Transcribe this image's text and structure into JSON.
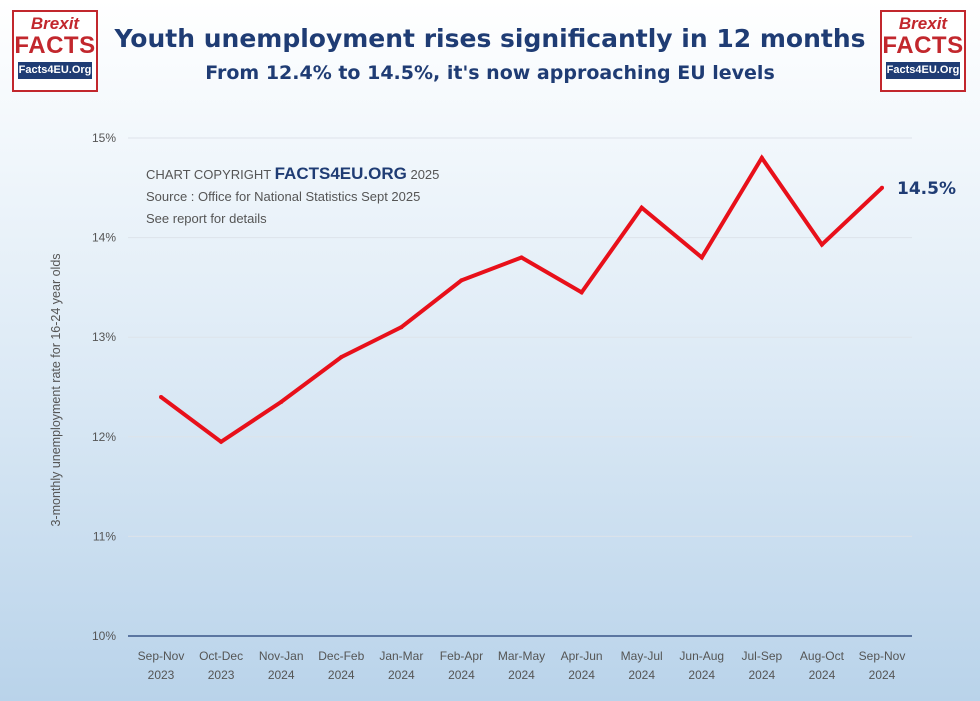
{
  "logos": {
    "line1": "Brexit",
    "line2": "FACTS",
    "line3": "Facts4EU.Org"
  },
  "colors": {
    "line": "#e8101a",
    "title": "#1f3c74",
    "logo_red": "#c2272d"
  },
  "copyright": {
    "prefix": "CHART COPYRIGHT",
    "brand": "FACTS4EU.ORG",
    "year": "2025",
    "source": "Source : Office for National Statistics Sept 2025",
    "note": "See report for details"
  },
  "chart_data": {
    "type": "line",
    "title": "Youth unemployment rises significantly in 12 months",
    "subtitle": "From 12.4% to 14.5%, it's now approaching EU levels",
    "ylabel": "3-monthly unemployment rate for 16-24 year olds",
    "xlabel": "",
    "categories": [
      [
        "Sep-Nov",
        "2023"
      ],
      [
        "Oct-Dec",
        "2023"
      ],
      [
        "Nov-Jan",
        "2024"
      ],
      [
        "Dec-Feb",
        "2024"
      ],
      [
        "Jan-Mar",
        "2024"
      ],
      [
        "Feb-Apr",
        "2024"
      ],
      [
        "Mar-May",
        "2024"
      ],
      [
        "Apr-Jun",
        "2024"
      ],
      [
        "May-Jul",
        "2024"
      ],
      [
        "Jun-Aug",
        "2024"
      ],
      [
        "Jul-Sep",
        "2024"
      ],
      [
        "Aug-Oct",
        "2024"
      ],
      [
        "Sep-Nov",
        "2024"
      ]
    ],
    "values": [
      12.4,
      11.95,
      12.35,
      12.8,
      13.1,
      13.57,
      13.8,
      13.45,
      14.3,
      13.8,
      14.8,
      13.93,
      14.5
    ],
    "ylim": [
      10,
      15
    ],
    "yticks": [
      10,
      11,
      12,
      13,
      14,
      15
    ],
    "ytick_labels": [
      "10%",
      "11%",
      "12%",
      "13%",
      "14%",
      "15%"
    ],
    "end_label": "14.5%",
    "grid": true
  }
}
